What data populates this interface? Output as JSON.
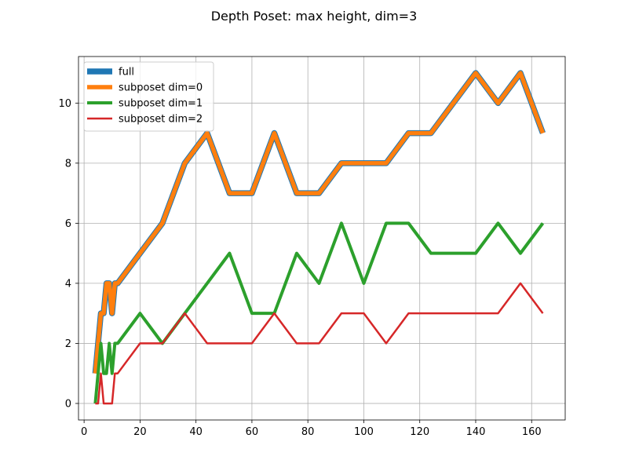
{
  "chart_data": {
    "type": "line",
    "title": "Depth Poset: max height, dim=3",
    "xlabel": "",
    "ylabel": "",
    "xlim": [
      -2.0,
      172.0
    ],
    "ylim": [
      -0.55,
      11.55
    ],
    "xticks": [
      0,
      20,
      40,
      60,
      80,
      100,
      120,
      140,
      160
    ],
    "yticks": [
      0,
      2,
      4,
      6,
      8,
      10
    ],
    "grid": true,
    "legend_position": "upper-left",
    "series": [
      {
        "name": "full",
        "color": "#1f77b4",
        "x": [
          4,
          5,
          6,
          7,
          8,
          9,
          10,
          11,
          12,
          20,
          28,
          36,
          44,
          52,
          60,
          68,
          76,
          84,
          92,
          100,
          108,
          116,
          124,
          132,
          140,
          148,
          156,
          164
        ],
        "y": [
          1,
          2,
          3,
          3,
          4,
          4,
          3,
          4,
          4,
          5,
          6,
          8,
          9,
          7,
          7,
          9,
          7,
          7,
          8,
          8,
          8,
          9,
          9,
          10,
          11,
          10,
          11,
          9
        ]
      },
      {
        "name": "subposet dim=0",
        "color": "#ff7f0e",
        "x": [
          4,
          5,
          6,
          7,
          8,
          9,
          10,
          11,
          12,
          20,
          28,
          36,
          44,
          52,
          60,
          68,
          76,
          84,
          92,
          100,
          108,
          116,
          124,
          132,
          140,
          148,
          156,
          164
        ],
        "y": [
          1,
          2,
          3,
          3,
          4,
          4,
          3,
          4,
          4,
          5,
          6,
          8,
          9,
          7,
          7,
          9,
          7,
          7,
          8,
          8,
          8,
          9,
          9,
          10,
          11,
          10,
          11,
          9
        ]
      },
      {
        "name": "subposet dim=1",
        "color": "#2ca02c",
        "x": [
          4,
          5,
          6,
          7,
          8,
          9,
          10,
          11,
          12,
          20,
          28,
          36,
          44,
          52,
          60,
          68,
          76,
          84,
          92,
          100,
          108,
          116,
          124,
          132,
          140,
          148,
          156,
          164
        ],
        "y": [
          0,
          1,
          2,
          1,
          1,
          2,
          1,
          2,
          2,
          3,
          2,
          3,
          4,
          5,
          3,
          3,
          5,
          4,
          6,
          4,
          6,
          6,
          5,
          5,
          5,
          6,
          5,
          6
        ]
      },
      {
        "name": "subposet dim=2",
        "color": "#d62728",
        "x": [
          4,
          5,
          6,
          7,
          8,
          9,
          10,
          11,
          12,
          20,
          28,
          36,
          44,
          52,
          60,
          68,
          76,
          84,
          92,
          100,
          108,
          116,
          124,
          132,
          140,
          148,
          156,
          164
        ],
        "y": [
          0,
          0,
          1,
          0,
          0,
          0,
          0,
          1,
          1,
          2,
          2,
          3,
          2,
          2,
          2,
          3,
          2,
          2,
          3,
          3,
          2,
          3,
          3,
          3,
          3,
          3,
          4,
          3
        ]
      }
    ]
  }
}
